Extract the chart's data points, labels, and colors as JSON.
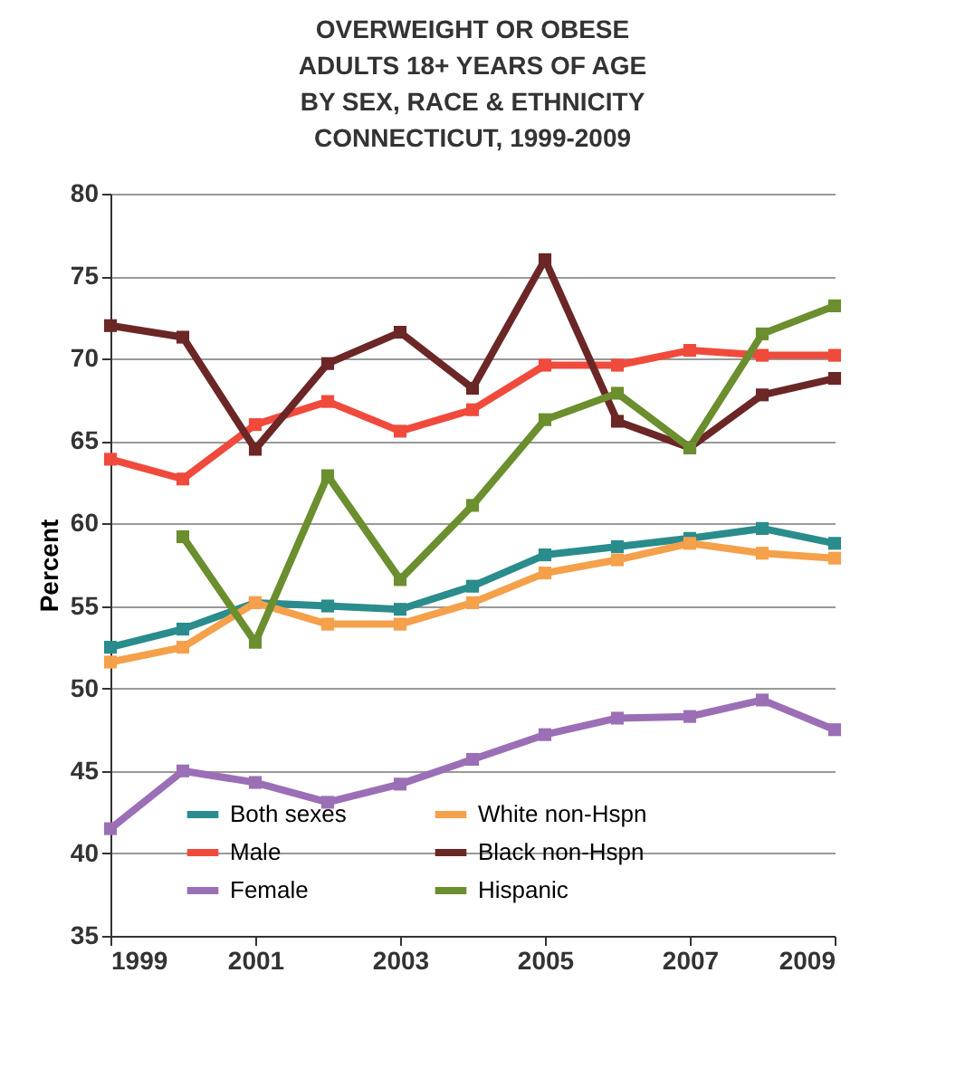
{
  "chart_data": {
    "type": "line",
    "title": "OVERWEIGHT OR OBESE\nADULTS 18+ YEARS OF AGE\nBY SEX, RACE & ETHNICITY\nCONNECTICUT,  1999-2009",
    "ylabel": "Percent",
    "x": [
      1999,
      2000,
      2001,
      2002,
      2003,
      2004,
      2005,
      2006,
      2007,
      2008,
      2009
    ],
    "xlim": [
      1999,
      2009
    ],
    "xticks": [
      1999,
      2001,
      2003,
      2005,
      2007,
      2009
    ],
    "ylim": [
      35,
      80
    ],
    "yticks": [
      35,
      40,
      45,
      50,
      55,
      60,
      65,
      70,
      75,
      80
    ],
    "grid": "y",
    "legend": "bottom",
    "marker": "square",
    "line_style": "solid",
    "series": [
      {
        "name": "Both sexes",
        "color": "#2a8c8c",
        "values": [
          52.5,
          53.6,
          55.2,
          55.0,
          54.8,
          56.2,
          58.1,
          58.6,
          59.1,
          59.7,
          58.8
        ]
      },
      {
        "name": "Male",
        "color": "#f04a3c",
        "values": [
          63.9,
          62.7,
          66.0,
          67.4,
          65.6,
          66.9,
          69.6,
          69.6,
          70.5,
          70.2,
          70.2
        ]
      },
      {
        "name": "Female",
        "color": "#9b6fb5",
        "values": [
          41.5,
          45.0,
          44.3,
          43.1,
          44.2,
          45.7,
          47.2,
          48.2,
          48.3,
          49.3,
          47.5
        ]
      },
      {
        "name": "White non-Hspn",
        "color": "#f5a04a",
        "values": [
          51.6,
          52.5,
          55.2,
          53.9,
          53.9,
          55.2,
          57.0,
          57.8,
          58.8,
          58.2,
          57.9
        ]
      },
      {
        "name": "Black non-Hspn",
        "color": "#6b2626",
        "values": [
          72.0,
          71.3,
          64.5,
          69.7,
          71.6,
          68.2,
          76.0,
          66.2,
          64.6,
          67.8,
          68.8
        ]
      },
      {
        "name": "Hispanic",
        "color": "#6b8e2e",
        "values": [
          null,
          59.2,
          52.8,
          62.9,
          56.6,
          61.1,
          66.3,
          67.9,
          64.6,
          71.5,
          73.2
        ]
      }
    ]
  }
}
